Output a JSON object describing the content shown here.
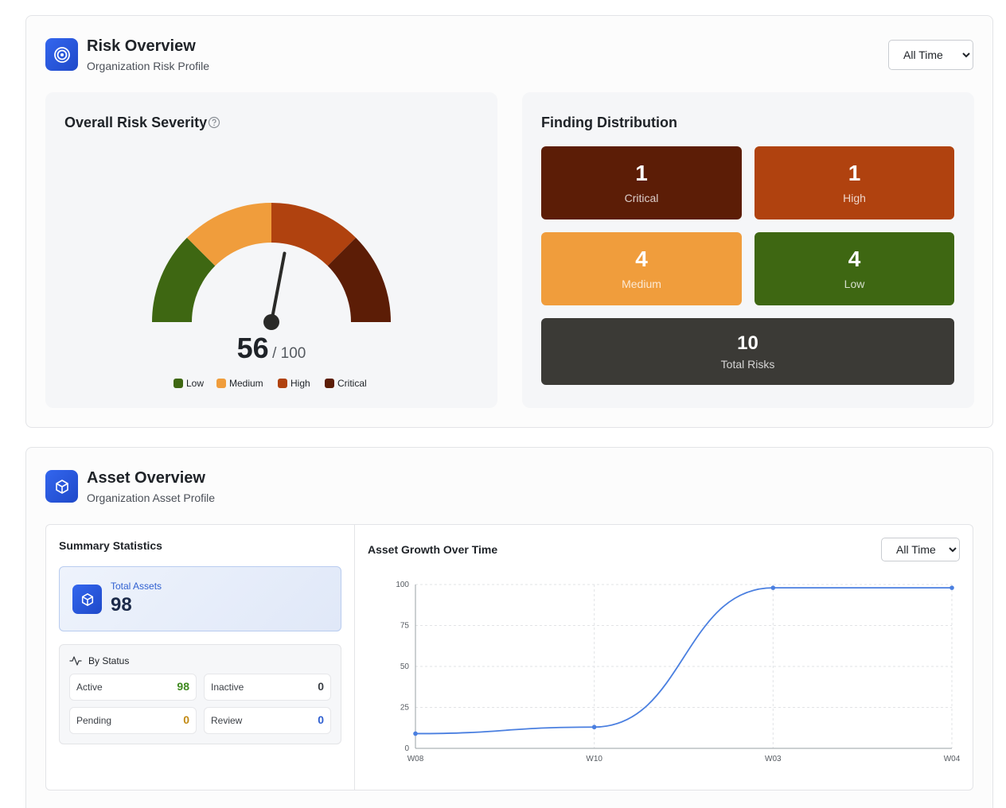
{
  "risk": {
    "title": "Risk Overview",
    "subtitle": "Organization Risk Profile",
    "period": "All Time",
    "severity": {
      "title": "Overall Risk Severity",
      "score": "56",
      "max_label": "/ 100",
      "score_value": 56,
      "segments": [
        {
          "name": "Low",
          "color": "#3e6712"
        },
        {
          "name": "Medium",
          "color": "#f09d3c"
        },
        {
          "name": "High",
          "color": "#b0420f"
        },
        {
          "name": "Critical",
          "color": "#5c1d06"
        }
      ]
    },
    "distribution": {
      "title": "Finding Distribution",
      "items": [
        {
          "count": "1",
          "label": "Critical",
          "color": "#5c1d06"
        },
        {
          "count": "1",
          "label": "High",
          "color": "#b0420f"
        },
        {
          "count": "4",
          "label": "Medium",
          "color": "#f09d3c"
        },
        {
          "count": "4",
          "label": "Low",
          "color": "#3e6712"
        }
      ],
      "total": {
        "count": "10",
        "label": "Total Risks",
        "color": "#3b3a36"
      }
    }
  },
  "asset": {
    "title": "Asset Overview",
    "subtitle": "Organization Asset Profile",
    "summary": {
      "title": "Summary Statistics",
      "total_label": "Total Assets",
      "total_value": "98",
      "by_status_label": "By Status",
      "statuses": [
        {
          "label": "Active",
          "value": "98",
          "color": "#3f8a1f"
        },
        {
          "label": "Inactive",
          "value": "0",
          "color": "#3b3f45"
        },
        {
          "label": "Pending",
          "value": "0",
          "color": "#c28a14"
        },
        {
          "label": "Review",
          "value": "0",
          "color": "#2f5fd0"
        }
      ]
    },
    "growth": {
      "title": "Asset Growth Over Time",
      "period": "All Time"
    }
  },
  "chart_data": {
    "type": "line",
    "x": [
      "W08",
      "W10",
      "W03",
      "W04"
    ],
    "series": [
      {
        "values": [
          9,
          13,
          98,
          98
        ]
      }
    ],
    "ylim": [
      0,
      100
    ],
    "yticks": [
      0,
      25,
      50,
      75,
      100
    ],
    "grid": true,
    "color": "#4a7fe0"
  }
}
